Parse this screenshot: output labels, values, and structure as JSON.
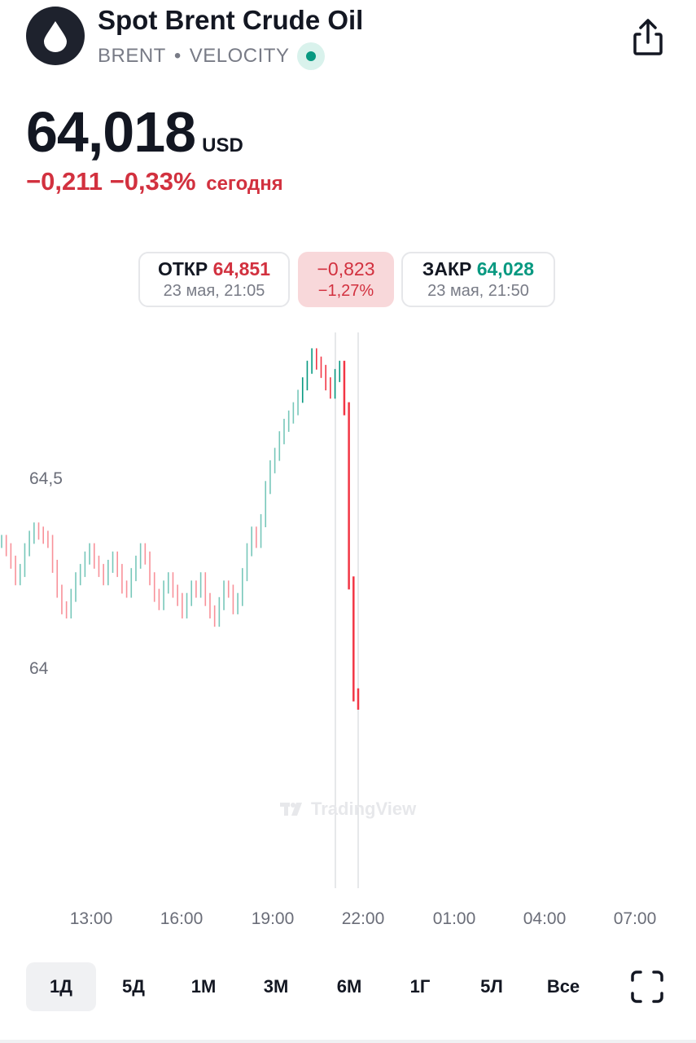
{
  "header": {
    "title": "Spot Brent Crude Oil",
    "symbol": "BRENT",
    "separator": "•",
    "exchange": "VELOCITY",
    "logo_icon": "oil-drop-icon",
    "share_icon": "share-icon"
  },
  "quote": {
    "price": "64,018",
    "currency": "USD",
    "change_abs": "−0,211",
    "change_pct": "−0,33%",
    "period": "сегодня"
  },
  "tooltip": {
    "open_label": "ОТКР",
    "open_value": "64,851",
    "open_time": "23 мая, 21:05",
    "delta_abs": "−0,823",
    "delta_pct": "−1,27%",
    "close_label": "ЗАКР",
    "close_value": "64,028",
    "close_time": "23 мая, 21:50"
  },
  "chart_data": {
    "type": "bar",
    "y_ticks": [
      "64,5",
      "64"
    ],
    "x_ticks": [
      "13:00",
      "16:00",
      "19:00",
      "22:00",
      "01:00",
      "04:00",
      "07:00"
    ],
    "ylim": [
      63.8,
      64.92
    ],
    "price_series": [
      64.42,
      64.4,
      64.37,
      64.33,
      64.35,
      64.4,
      64.43,
      64.45,
      64.44,
      64.43,
      64.42,
      64.36,
      64.3,
      64.26,
      64.25,
      64.29,
      64.33,
      64.35,
      64.38,
      64.4,
      64.37,
      64.35,
      64.33,
      64.36,
      64.38,
      64.35,
      64.31,
      64.3,
      64.34,
      64.37,
      64.4,
      64.38,
      64.33,
      64.29,
      64.27,
      64.31,
      64.33,
      64.3,
      64.28,
      64.25,
      64.28,
      64.31,
      64.3,
      64.33,
      64.28,
      64.25,
      64.23,
      64.27,
      64.31,
      64.3,
      64.26,
      64.28,
      64.34,
      64.4,
      64.44,
      64.42,
      64.47,
      64.55,
      64.6,
      64.63,
      64.67,
      64.7,
      64.72,
      64.74,
      64.77,
      64.8,
      64.84,
      64.87,
      64.85,
      64.83,
      64.8,
      64.78,
      64.82,
      64.84,
      64.74,
      64.32,
      64.05,
      64.03
    ],
    "colors": {
      "up": "#089981",
      "down": "#f23645"
    },
    "watermark": "TradingView"
  },
  "ranges": [
    {
      "label": "1Д",
      "active": true
    },
    {
      "label": "5Д",
      "active": false
    },
    {
      "label": "1М",
      "active": false
    },
    {
      "label": "3М",
      "active": false
    },
    {
      "label": "6М",
      "active": false
    },
    {
      "label": "1Г",
      "active": false
    },
    {
      "label": "5Л",
      "active": false
    },
    {
      "label": "Все",
      "active": false
    }
  ],
  "fullscreen_icon": "fullscreen-icon"
}
